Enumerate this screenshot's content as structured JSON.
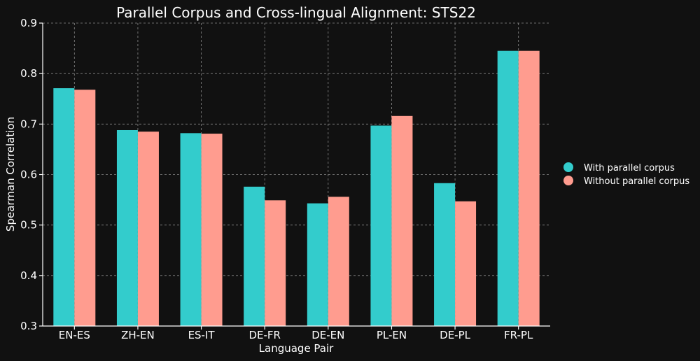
{
  "chart_data": {
    "type": "bar",
    "title": "Parallel Corpus and Cross-lingual Alignment: STS22",
    "xlabel": "Language Pair",
    "ylabel": "Spearman Correlation",
    "ylim": [
      0.3,
      0.9
    ],
    "yticks": [
      "0.3",
      "0.4",
      "0.5",
      "0.6",
      "0.7",
      "0.8",
      "0.9"
    ],
    "grid": true,
    "legend_position": "right",
    "categories": [
      "EN-ES",
      "ZH-EN",
      "ES-IT",
      "DE-FR",
      "DE-EN",
      "PL-EN",
      "DE-PL",
      "FR-PL"
    ],
    "series": [
      {
        "name": "With parallel corpus",
        "color": "#33CCCC",
        "values": [
          0.771,
          0.688,
          0.682,
          0.576,
          0.543,
          0.697,
          0.583,
          0.845
        ]
      },
      {
        "name": "Without parallel corpus",
        "color": "#FF9C8F",
        "values": [
          0.768,
          0.685,
          0.681,
          0.549,
          0.556,
          0.716,
          0.547,
          0.845
        ]
      }
    ]
  }
}
